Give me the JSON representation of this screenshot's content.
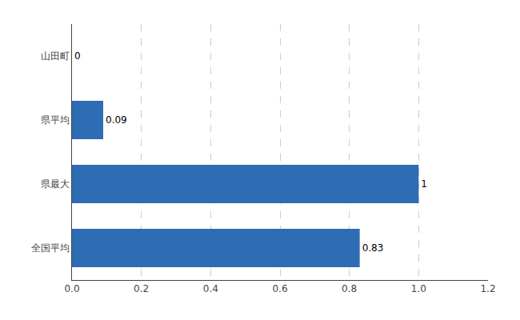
{
  "chart_data": {
    "type": "bar",
    "orientation": "horizontal",
    "categories": [
      "全国平均",
      "県最大",
      "県平均",
      "山田町"
    ],
    "values": [
      0.83,
      1.0,
      0.09,
      0
    ],
    "color": "#2E6DB4",
    "data_labels": true,
    "xlim": [
      0,
      1.2
    ],
    "xticks": [
      {
        "value": 0,
        "label": "0.0"
      },
      0.2,
      0.4,
      0.6,
      0.8,
      {
        "value": 1.0,
        "label": "1.0"
      },
      1.2
    ],
    "grid": true
  }
}
